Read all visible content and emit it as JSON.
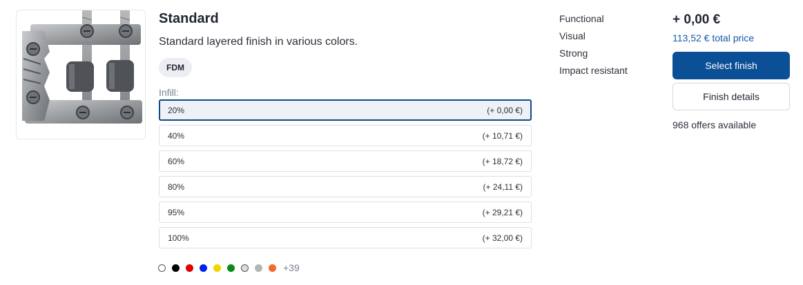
{
  "finish": {
    "title": "Standard",
    "description": "Standard layered finish in various colors.",
    "technology_badge": "FDM"
  },
  "infill": {
    "label": "Infill:",
    "options": [
      {
        "value": "20%",
        "price": "(+ 0,00 €)",
        "selected": true
      },
      {
        "value": "40%",
        "price": "(+ 10,71 €)",
        "selected": false
      },
      {
        "value": "60%",
        "price": "(+ 18,72 €)",
        "selected": false
      },
      {
        "value": "80%",
        "price": "(+ 24,11 €)",
        "selected": false
      },
      {
        "value": "95%",
        "price": "(+ 29,21 €)",
        "selected": false
      },
      {
        "value": "100%",
        "price": "(+ 32,00 €)",
        "selected": false
      }
    ]
  },
  "colors": {
    "swatches": [
      "#ffffff",
      "#000000",
      "#e00000",
      "#0022ee",
      "#f2d400",
      "#0a8a1a",
      "#dcdcdc",
      "#b5b5b5",
      "#f26a2c"
    ],
    "more_label": "+39"
  },
  "properties": [
    "Functional",
    "Visual",
    "Strong",
    "Impact resistant"
  ],
  "pricing": {
    "price": "+ 0,00 €",
    "total": "113,52 € total price",
    "select_label": "Select finish",
    "details_label": "Finish details",
    "offers": "968 offers available"
  },
  "accent_color": "#0b4f96"
}
